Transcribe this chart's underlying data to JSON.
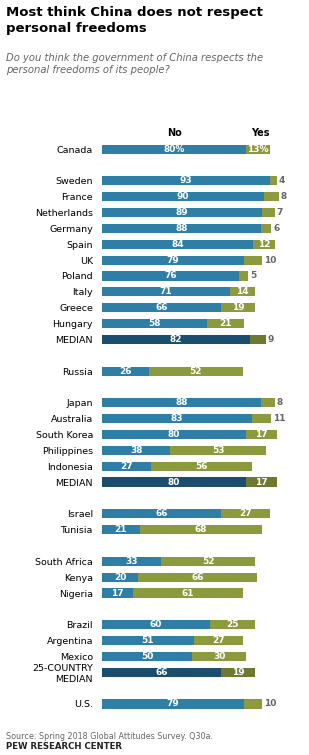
{
  "title": "Most think China does not respect\npersonal freedoms",
  "subtitle": "Do you think the government of China respects the\npersonal freedoms of its people?",
  "source": "Source: Spring 2018 Global Attitudes Survey. Q30a.",
  "footer": "PEW RESEARCH CENTER",
  "color_no": "#2E7EA6",
  "color_yes": "#8C9A3E",
  "color_median_no": "#1A4D6E",
  "color_median_yes": "#6B7A2E",
  "rows": [
    {
      "label": "Canada",
      "no": 80,
      "yes": 13,
      "is_median": false,
      "show_pct": true
    },
    {
      "label": "",
      "no": null,
      "yes": null,
      "is_median": false,
      "show_pct": false
    },
    {
      "label": "Sweden",
      "no": 93,
      "yes": 4,
      "is_median": false,
      "show_pct": false
    },
    {
      "label": "France",
      "no": 90,
      "yes": 8,
      "is_median": false,
      "show_pct": false
    },
    {
      "label": "Netherlands",
      "no": 89,
      "yes": 7,
      "is_median": false,
      "show_pct": false
    },
    {
      "label": "Germany",
      "no": 88,
      "yes": 6,
      "is_median": false,
      "show_pct": false
    },
    {
      "label": "Spain",
      "no": 84,
      "yes": 12,
      "is_median": false,
      "show_pct": false
    },
    {
      "label": "UK",
      "no": 79,
      "yes": 10,
      "is_median": false,
      "show_pct": false
    },
    {
      "label": "Poland",
      "no": 76,
      "yes": 5,
      "is_median": false,
      "show_pct": false
    },
    {
      "label": "Italy",
      "no": 71,
      "yes": 14,
      "is_median": false,
      "show_pct": false
    },
    {
      "label": "Greece",
      "no": 66,
      "yes": 19,
      "is_median": false,
      "show_pct": false
    },
    {
      "label": "Hungary",
      "no": 58,
      "yes": 21,
      "is_median": false,
      "show_pct": false
    },
    {
      "label": "MEDIAN",
      "no": 82,
      "yes": 9,
      "is_median": true,
      "show_pct": false
    },
    {
      "label": "",
      "no": null,
      "yes": null,
      "is_median": false,
      "show_pct": false
    },
    {
      "label": "Russia",
      "no": 26,
      "yes": 52,
      "is_median": false,
      "show_pct": false
    },
    {
      "label": "",
      "no": null,
      "yes": null,
      "is_median": false,
      "show_pct": false
    },
    {
      "label": "Japan",
      "no": 88,
      "yes": 8,
      "is_median": false,
      "show_pct": false
    },
    {
      "label": "Australia",
      "no": 83,
      "yes": 11,
      "is_median": false,
      "show_pct": false
    },
    {
      "label": "South Korea",
      "no": 80,
      "yes": 17,
      "is_median": false,
      "show_pct": false
    },
    {
      "label": "Philippines",
      "no": 38,
      "yes": 53,
      "is_median": false,
      "show_pct": false
    },
    {
      "label": "Indonesia",
      "no": 27,
      "yes": 56,
      "is_median": false,
      "show_pct": false
    },
    {
      "label": "MEDIAN",
      "no": 80,
      "yes": 17,
      "is_median": true,
      "show_pct": false
    },
    {
      "label": "",
      "no": null,
      "yes": null,
      "is_median": false,
      "show_pct": false
    },
    {
      "label": "Israel",
      "no": 66,
      "yes": 27,
      "is_median": false,
      "show_pct": false
    },
    {
      "label": "Tunisia",
      "no": 21,
      "yes": 68,
      "is_median": false,
      "show_pct": false
    },
    {
      "label": "",
      "no": null,
      "yes": null,
      "is_median": false,
      "show_pct": false
    },
    {
      "label": "South Africa",
      "no": 33,
      "yes": 52,
      "is_median": false,
      "show_pct": false
    },
    {
      "label": "Kenya",
      "no": 20,
      "yes": 66,
      "is_median": false,
      "show_pct": false
    },
    {
      "label": "Nigeria",
      "no": 17,
      "yes": 61,
      "is_median": false,
      "show_pct": false
    },
    {
      "label": "",
      "no": null,
      "yes": null,
      "is_median": false,
      "show_pct": false
    },
    {
      "label": "Brazil",
      "no": 60,
      "yes": 25,
      "is_median": false,
      "show_pct": false
    },
    {
      "label": "Argentina",
      "no": 51,
      "yes": 27,
      "is_median": false,
      "show_pct": false
    },
    {
      "label": "Mexico",
      "no": 50,
      "yes": 30,
      "is_median": false,
      "show_pct": false
    },
    {
      "label": "25-COUNTRY\nMEDIAN",
      "no": 66,
      "yes": 19,
      "is_median": true,
      "show_pct": false
    },
    {
      "label": "",
      "no": null,
      "yes": null,
      "is_median": false,
      "show_pct": false
    },
    {
      "label": "U.S.",
      "no": 79,
      "yes": 10,
      "is_median": false,
      "show_pct": false
    }
  ],
  "xlim": 108,
  "bar_height": 0.58,
  "label_fontsize": 6.8,
  "bar_fontsize": 6.5,
  "title_fontsize": 9.5,
  "subtitle_fontsize": 7.2
}
